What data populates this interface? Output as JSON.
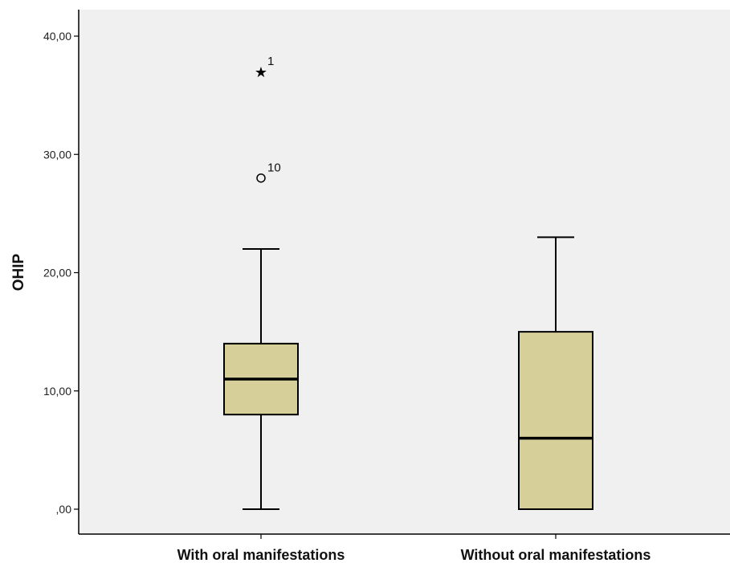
{
  "chart_data": {
    "type": "boxplot",
    "ylabel": "OHIP",
    "xlabel": "",
    "ylim": [
      -4,
      44
    ],
    "yticks": [
      0,
      10,
      20,
      30,
      40
    ],
    "ytick_labels": [
      ",00",
      "10,00",
      "20,00",
      "30,00",
      "40,00"
    ],
    "grid": false,
    "categories": [
      "With oral manifestations",
      "Without oral manifestations"
    ],
    "boxes": [
      {
        "category": "With oral manifestations",
        "whisker_low": 0,
        "q1": 8,
        "median": 11,
        "q3": 14,
        "whisker_high": 22,
        "outliers": [
          {
            "value": 37,
            "marker": "star",
            "label": "1"
          },
          {
            "value": 28,
            "marker": "circle",
            "label": "10"
          }
        ]
      },
      {
        "category": "Without oral manifestations",
        "whisker_low": 0,
        "q1": 0,
        "median": 6,
        "q3": 15,
        "whisker_high": 23,
        "outliers": []
      }
    ],
    "colors": {
      "box_fill": "#d6cf9a",
      "plot_background": "#f0f0f0",
      "line": "#000000"
    }
  }
}
